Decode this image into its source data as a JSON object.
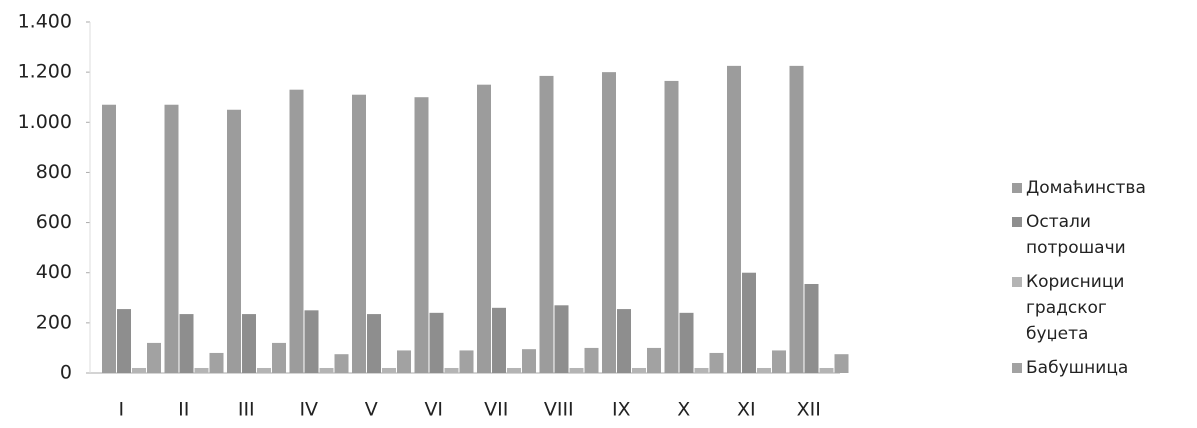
{
  "chart_data": {
    "type": "bar",
    "categories": [
      "I",
      "II",
      "III",
      "IV",
      "V",
      "VI",
      "VII",
      "VIII",
      "IX",
      "X",
      "XI",
      "XII"
    ],
    "series": [
      {
        "name": "Домаћинства",
        "color": "#9c9c9c",
        "values": [
          1070,
          1070,
          1050,
          1130,
          1110,
          1100,
          1150,
          1185,
          1200,
          1165,
          1225,
          1225
        ]
      },
      {
        "name": "Остали потрошачи",
        "color": "#8e8e8e",
        "values": [
          255,
          235,
          235,
          250,
          235,
          240,
          260,
          270,
          255,
          240,
          400,
          355
        ]
      },
      {
        "name": "Корисници градског буџета",
        "color": "#b4b4b4",
        "values": [
          20,
          20,
          20,
          20,
          20,
          20,
          20,
          20,
          20,
          20,
          20,
          20
        ]
      },
      {
        "name": "Бабушница",
        "color": "#a2a2a2",
        "values": [
          120,
          80,
          120,
          75,
          90,
          90,
          95,
          100,
          100,
          80,
          90,
          75
        ]
      }
    ],
    "ylim": [
      0,
      1400
    ],
    "yticks": [
      0,
      200,
      400,
      600,
      800,
      {
        "value": 1000,
        "label": "1.000"
      },
      {
        "value": 1200,
        "label": "1.200"
      },
      {
        "value": 1400,
        "label": "1.400"
      }
    ],
    "legend": "right"
  }
}
